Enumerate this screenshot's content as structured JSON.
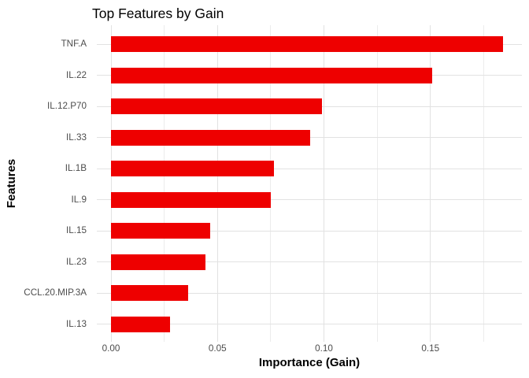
{
  "figure": {
    "title": "Top Features by Gain"
  },
  "chart_data": {
    "type": "bar",
    "orientation": "horizontal",
    "title": "Top Features by Gain",
    "xlabel": "Importance (Gain)",
    "ylabel": "Features",
    "categories": [
      "TNF.A",
      "IL.22",
      "IL.12.P70",
      "IL.33",
      "IL.1B",
      "IL.9",
      "IL.15",
      "IL.23",
      "CCL.20.MIP.3A",
      "IL.13"
    ],
    "values": [
      0.184,
      0.151,
      0.099,
      0.0935,
      0.0766,
      0.0749,
      0.0467,
      0.0444,
      0.0363,
      0.0277
    ],
    "xlim": [
      0,
      0.193
    ],
    "x_ticks": {
      "labels": [
        "0.00",
        "0.05",
        "0.10",
        "0.15"
      ],
      "values": [
        0,
        0.05,
        0.1,
        0.15
      ]
    },
    "x_minor_ticks": [
      0.025,
      0.075,
      0.125,
      0.175
    ],
    "grid": "major+minor vertical, major horizontal",
    "legend": "none",
    "colors": {
      "bar": "#EE0000",
      "grid_major": "#E2E2E2",
      "grid_minor": "#ECECEC",
      "tick_text": "#4D4D4D",
      "title_text": "#000000",
      "background": "#FFFFFF"
    }
  }
}
